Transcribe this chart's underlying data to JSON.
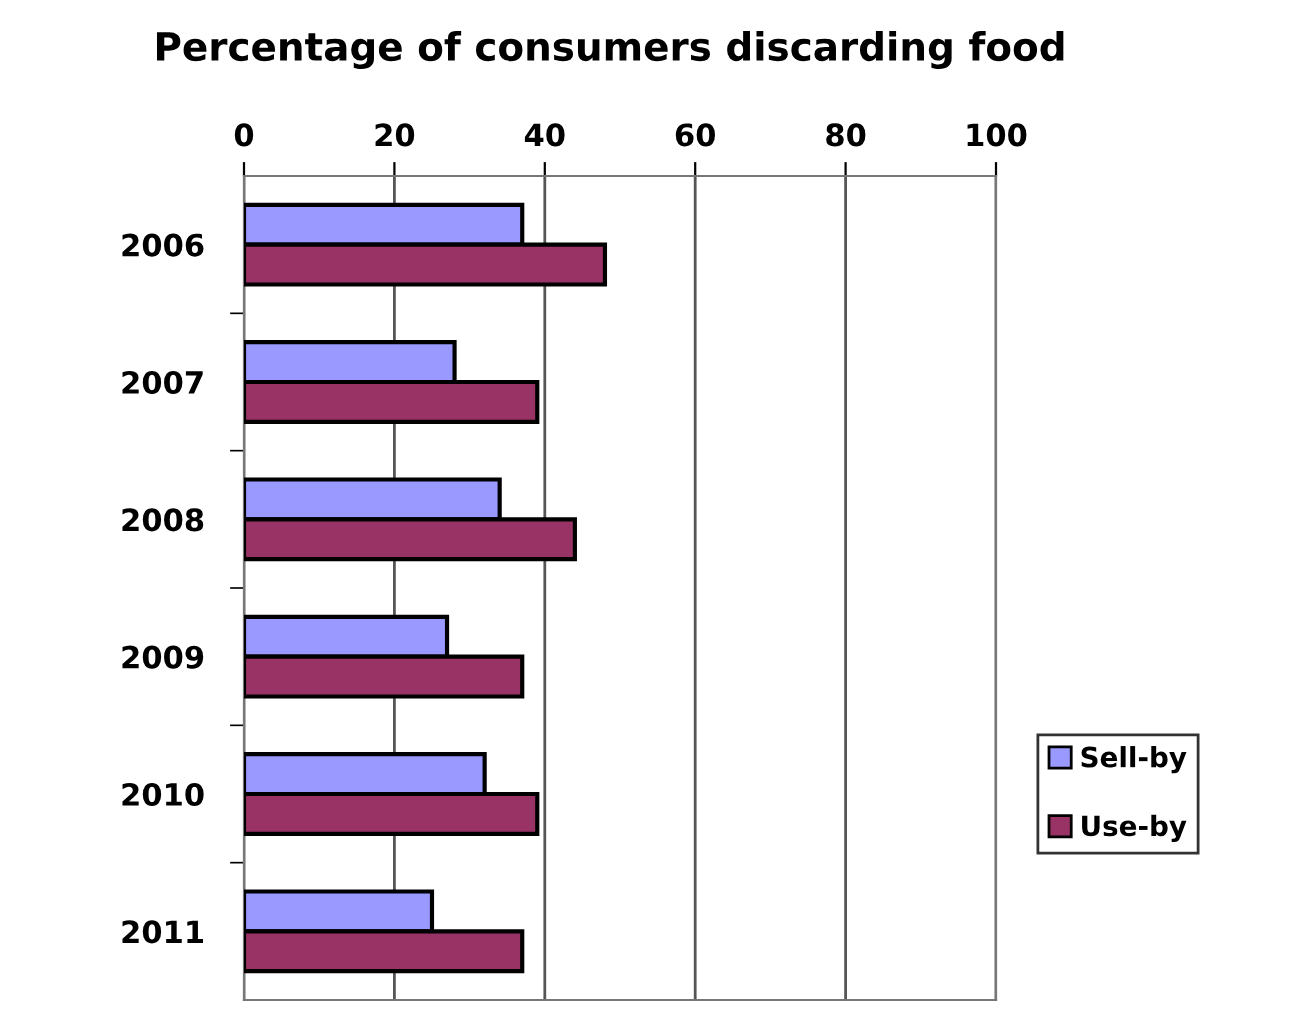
{
  "chart_data": {
    "type": "bar",
    "orientation": "horizontal",
    "title": "Percentage of consumers discarding food",
    "categories": [
      "2006",
      "2007",
      "2008",
      "2009",
      "2010",
      "2011"
    ],
    "series": [
      {
        "name": "Sell-by",
        "color": "#9999ff",
        "values": [
          37,
          28,
          34,
          27,
          32,
          25
        ]
      },
      {
        "name": "Use-by",
        "color": "#993366",
        "values": [
          48,
          39,
          44,
          37,
          39,
          37
        ]
      }
    ],
    "xlim": [
      0,
      100
    ],
    "xticks": [
      0,
      20,
      40,
      60,
      80,
      100
    ],
    "grid": "x",
    "legend": "right"
  }
}
